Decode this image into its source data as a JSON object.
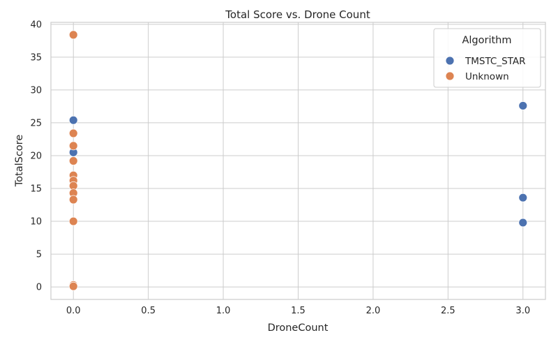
{
  "chart_data": {
    "type": "scatter",
    "title": "Total Score vs. Drone Count",
    "xlabel": "DroneCount",
    "ylabel": "TotalScore",
    "xlim": [
      -0.15,
      3.15
    ],
    "ylim": [
      -1.9,
      40.3
    ],
    "xticks": [
      0.0,
      0.5,
      1.0,
      1.5,
      2.0,
      2.5,
      3.0
    ],
    "xtick_labels": [
      "0.0",
      "0.5",
      "1.0",
      "1.5",
      "2.0",
      "2.5",
      "3.0"
    ],
    "yticks": [
      0,
      5,
      10,
      15,
      20,
      25,
      30,
      35,
      40
    ],
    "ytick_labels": [
      "0",
      "5",
      "10",
      "15",
      "20",
      "25",
      "30",
      "35",
      "40"
    ],
    "grid": true,
    "legend": {
      "title": "Algorithm",
      "placement": "top-right"
    },
    "series": [
      {
        "name": "TMSTC_STAR",
        "color": "#4c72b0",
        "points": [
          {
            "x": 0,
            "y": 25.4
          },
          {
            "x": 0,
            "y": 20.5
          },
          {
            "x": 3,
            "y": 27.6
          },
          {
            "x": 3,
            "y": 13.6
          },
          {
            "x": 3,
            "y": 9.8
          }
        ]
      },
      {
        "name": "Unknown",
        "color": "#dd8452",
        "points": [
          {
            "x": 0,
            "y": 38.4
          },
          {
            "x": 0,
            "y": 23.4
          },
          {
            "x": 0,
            "y": 21.5
          },
          {
            "x": 0,
            "y": 19.2
          },
          {
            "x": 0,
            "y": 17.0
          },
          {
            "x": 0,
            "y": 16.2
          },
          {
            "x": 0,
            "y": 15.4
          },
          {
            "x": 0,
            "y": 14.3
          },
          {
            "x": 0,
            "y": 13.3
          },
          {
            "x": 0,
            "y": 10.0
          },
          {
            "x": 0,
            "y": 0.3
          },
          {
            "x": 0,
            "y": 0.1
          }
        ]
      }
    ]
  }
}
